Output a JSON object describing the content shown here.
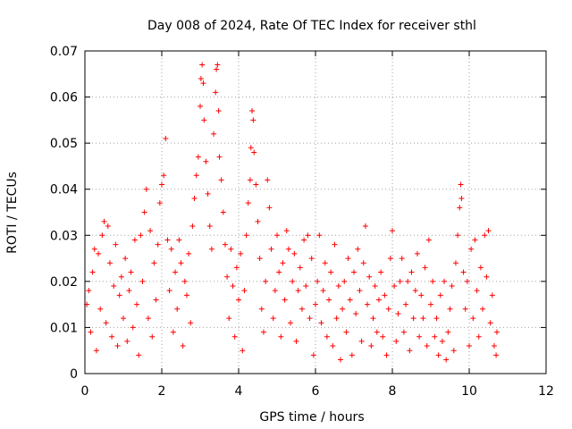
{
  "chart_data": {
    "type": "scatter",
    "title": "Day 008 of 2024, Rate Of TEC Index for receiver sthl",
    "xlabel": "GPS time / hours",
    "ylabel": "ROTI / TECUs",
    "xlim": [
      0,
      12
    ],
    "ylim": [
      0,
      0.07
    ],
    "xticks": [
      0,
      2,
      4,
      6,
      8,
      10,
      12
    ],
    "yticks": [
      0,
      0.01,
      0.02,
      0.03,
      0.04,
      0.05,
      0.06,
      0.07
    ],
    "xtick_labels": [
      "0",
      "2",
      "4",
      "6",
      "8",
      "10",
      "12"
    ],
    "ytick_labels": [
      "0",
      "0.01",
      "0.02",
      "0.03",
      "0.04",
      "0.05",
      "0.06",
      "0.07"
    ],
    "grid": true,
    "marker": "+",
    "color": "#ff0000",
    "series": [
      {
        "name": "ROTI",
        "points": [
          [
            0.05,
            0.015
          ],
          [
            0.1,
            0.018
          ],
          [
            0.15,
            0.009
          ],
          [
            0.2,
            0.022
          ],
          [
            0.25,
            0.027
          ],
          [
            0.3,
            0.005
          ],
          [
            0.35,
            0.026
          ],
          [
            0.4,
            0.014
          ],
          [
            0.45,
            0.03
          ],
          [
            0.5,
            0.033
          ],
          [
            0.55,
            0.011
          ],
          [
            0.6,
            0.032
          ],
          [
            0.65,
            0.024
          ],
          [
            0.7,
            0.008
          ],
          [
            0.75,
            0.019
          ],
          [
            0.8,
            0.028
          ],
          [
            0.85,
            0.006
          ],
          [
            0.9,
            0.017
          ],
          [
            0.95,
            0.021
          ],
          [
            1.0,
            0.012
          ],
          [
            1.05,
            0.025
          ],
          [
            1.1,
            0.007
          ],
          [
            1.15,
            0.018
          ],
          [
            1.2,
            0.022
          ],
          [
            1.25,
            0.01
          ],
          [
            1.3,
            0.029
          ],
          [
            1.35,
            0.015
          ],
          [
            1.4,
            0.004
          ],
          [
            1.45,
            0.03
          ],
          [
            1.5,
            0.02
          ],
          [
            1.55,
            0.035
          ],
          [
            1.6,
            0.04
          ],
          [
            1.65,
            0.012
          ],
          [
            1.7,
            0.031
          ],
          [
            1.75,
            0.008
          ],
          [
            1.8,
            0.024
          ],
          [
            1.85,
            0.016
          ],
          [
            1.9,
            0.028
          ],
          [
            1.95,
            0.037
          ],
          [
            2.0,
            0.041
          ],
          [
            2.05,
            0.043
          ],
          [
            2.1,
            0.051
          ],
          [
            2.15,
            0.029
          ],
          [
            2.2,
            0.018
          ],
          [
            2.25,
            0.027
          ],
          [
            2.3,
            0.009
          ],
          [
            2.35,
            0.022
          ],
          [
            2.4,
            0.014
          ],
          [
            2.45,
            0.029
          ],
          [
            2.5,
            0.024
          ],
          [
            2.55,
            0.006
          ],
          [
            2.6,
            0.02
          ],
          [
            2.65,
            0.017
          ],
          [
            2.7,
            0.026
          ],
          [
            2.75,
            0.011
          ],
          [
            2.8,
            0.032
          ],
          [
            2.85,
            0.038
          ],
          [
            2.9,
            0.043
          ],
          [
            2.95,
            0.047
          ],
          [
            3.0,
            0.058
          ],
          [
            3.02,
            0.064
          ],
          [
            3.05,
            0.067
          ],
          [
            3.08,
            0.063
          ],
          [
            3.1,
            0.055
          ],
          [
            3.15,
            0.046
          ],
          [
            3.2,
            0.039
          ],
          [
            3.25,
            0.032
          ],
          [
            3.3,
            0.027
          ],
          [
            3.35,
            0.052
          ],
          [
            3.4,
            0.061
          ],
          [
            3.42,
            0.066
          ],
          [
            3.45,
            0.067
          ],
          [
            3.48,
            0.057
          ],
          [
            3.5,
            0.047
          ],
          [
            3.55,
            0.042
          ],
          [
            3.6,
            0.035
          ],
          [
            3.65,
            0.028
          ],
          [
            3.7,
            0.021
          ],
          [
            3.75,
            0.012
          ],
          [
            3.8,
            0.027
          ],
          [
            3.85,
            0.019
          ],
          [
            3.9,
            0.008
          ],
          [
            3.95,
            0.023
          ],
          [
            4.0,
            0.016
          ],
          [
            4.05,
            0.026
          ],
          [
            4.1,
            0.005
          ],
          [
            4.15,
            0.018
          ],
          [
            4.2,
            0.03
          ],
          [
            4.25,
            0.037
          ],
          [
            4.3,
            0.042
          ],
          [
            4.32,
            0.049
          ],
          [
            4.35,
            0.057
          ],
          [
            4.38,
            0.055
          ],
          [
            4.4,
            0.048
          ],
          [
            4.45,
            0.041
          ],
          [
            4.5,
            0.033
          ],
          [
            4.55,
            0.025
          ],
          [
            4.6,
            0.014
          ],
          [
            4.65,
            0.009
          ],
          [
            4.7,
            0.02
          ],
          [
            4.75,
            0.042
          ],
          [
            4.8,
            0.036
          ],
          [
            4.85,
            0.027
          ],
          [
            4.9,
            0.012
          ],
          [
            4.95,
            0.018
          ],
          [
            5.0,
            0.03
          ],
          [
            5.05,
            0.022
          ],
          [
            5.1,
            0.008
          ],
          [
            5.15,
            0.024
          ],
          [
            5.2,
            0.016
          ],
          [
            5.25,
            0.031
          ],
          [
            5.3,
            0.027
          ],
          [
            5.35,
            0.011
          ],
          [
            5.4,
            0.02
          ],
          [
            5.45,
            0.026
          ],
          [
            5.5,
            0.007
          ],
          [
            5.55,
            0.018
          ],
          [
            5.6,
            0.023
          ],
          [
            5.65,
            0.014
          ],
          [
            5.7,
            0.029
          ],
          [
            5.75,
            0.019
          ],
          [
            5.8,
            0.03
          ],
          [
            5.85,
            0.012
          ],
          [
            5.9,
            0.025
          ],
          [
            5.95,
            0.004
          ],
          [
            6.0,
            0.015
          ],
          [
            6.05,
            0.02
          ],
          [
            6.1,
            0.03
          ],
          [
            6.15,
            0.011
          ],
          [
            6.2,
            0.018
          ],
          [
            6.25,
            0.024
          ],
          [
            6.3,
            0.008
          ],
          [
            6.35,
            0.016
          ],
          [
            6.4,
            0.022
          ],
          [
            6.45,
            0.006
          ],
          [
            6.5,
            0.028
          ],
          [
            6.55,
            0.012
          ],
          [
            6.6,
            0.019
          ],
          [
            6.65,
            0.003
          ],
          [
            6.7,
            0.014
          ],
          [
            6.75,
            0.02
          ],
          [
            6.8,
            0.009
          ],
          [
            6.85,
            0.025
          ],
          [
            6.9,
            0.016
          ],
          [
            6.95,
            0.004
          ],
          [
            7.0,
            0.022
          ],
          [
            7.05,
            0.013
          ],
          [
            7.1,
            0.027
          ],
          [
            7.15,
            0.018
          ],
          [
            7.2,
            0.007
          ],
          [
            7.25,
            0.024
          ],
          [
            7.3,
            0.032
          ],
          [
            7.35,
            0.015
          ],
          [
            7.4,
            0.021
          ],
          [
            7.45,
            0.006
          ],
          [
            7.5,
            0.012
          ],
          [
            7.55,
            0.019
          ],
          [
            7.6,
            0.009
          ],
          [
            7.65,
            0.016
          ],
          [
            7.7,
            0.022
          ],
          [
            7.75,
            0.008
          ],
          [
            7.8,
            0.017
          ],
          [
            7.85,
            0.004
          ],
          [
            7.9,
            0.014
          ],
          [
            7.95,
            0.025
          ],
          [
            8.0,
            0.031
          ],
          [
            8.05,
            0.019
          ],
          [
            8.1,
            0.007
          ],
          [
            8.15,
            0.013
          ],
          [
            8.2,
            0.02
          ],
          [
            8.25,
            0.025
          ],
          [
            8.3,
            0.009
          ],
          [
            8.35,
            0.015
          ],
          [
            8.4,
            0.02
          ],
          [
            8.45,
            0.005
          ],
          [
            8.5,
            0.022
          ],
          [
            8.55,
            0.012
          ],
          [
            8.6,
            0.018
          ],
          [
            8.65,
            0.026
          ],
          [
            8.7,
            0.008
          ],
          [
            8.75,
            0.017
          ],
          [
            8.8,
            0.012
          ],
          [
            8.85,
            0.023
          ],
          [
            8.9,
            0.006
          ],
          [
            8.95,
            0.029
          ],
          [
            9.0,
            0.015
          ],
          [
            9.05,
            0.02
          ],
          [
            9.1,
            0.008
          ],
          [
            9.15,
            0.012
          ],
          [
            9.2,
            0.004
          ],
          [
            9.25,
            0.017
          ],
          [
            9.3,
            0.007
          ],
          [
            9.35,
            0.02
          ],
          [
            9.4,
            0.003
          ],
          [
            9.45,
            0.009
          ],
          [
            9.5,
            0.014
          ],
          [
            9.55,
            0.019
          ],
          [
            9.6,
            0.005
          ],
          [
            9.65,
            0.024
          ],
          [
            9.7,
            0.03
          ],
          [
            9.75,
            0.036
          ],
          [
            9.78,
            0.041
          ],
          [
            9.8,
            0.038
          ],
          [
            9.85,
            0.022
          ],
          [
            9.9,
            0.014
          ],
          [
            9.95,
            0.02
          ],
          [
            10.0,
            0.006
          ],
          [
            10.05,
            0.027
          ],
          [
            10.1,
            0.012
          ],
          [
            10.15,
            0.029
          ],
          [
            10.2,
            0.018
          ],
          [
            10.25,
            0.008
          ],
          [
            10.3,
            0.023
          ],
          [
            10.35,
            0.014
          ],
          [
            10.4,
            0.03
          ],
          [
            10.45,
            0.021
          ],
          [
            10.5,
            0.031
          ],
          [
            10.55,
            0.011
          ],
          [
            10.6,
            0.017
          ],
          [
            10.65,
            0.006
          ],
          [
            10.7,
            0.004
          ],
          [
            10.72,
            0.009
          ]
        ]
      }
    ]
  }
}
